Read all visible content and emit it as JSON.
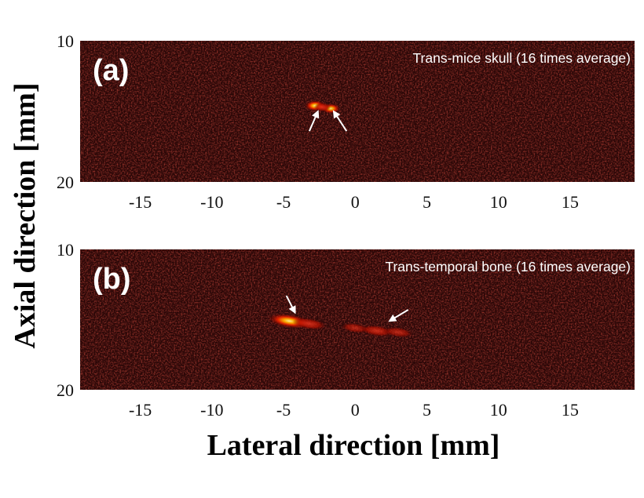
{
  "chart_data": {
    "type": "heatmap",
    "xlabel": "Lateral direction [mm]",
    "ylabel": "Axial direction [mm]",
    "colormap": "hot",
    "background_color": "#2a0707",
    "x_ticks": [
      -15,
      -10,
      -5,
      0,
      5,
      10,
      15
    ],
    "xlim": [
      -19.2,
      19.5
    ],
    "panels": [
      {
        "label": "(a)",
        "caption": "Trans-mice skull (16 times average)",
        "ylim": [
          10,
          20
        ],
        "y_ticks": [
          10,
          20
        ],
        "arrow_color": "#ffffff",
        "bright_regions": [
          {
            "x": -2.8,
            "y": 14.6,
            "intensity": 1.0
          },
          {
            "x": -1.7,
            "y": 14.8,
            "intensity": 0.85
          },
          {
            "x": -2.3,
            "y": 14.7,
            "intensity": 0.6
          }
        ],
        "arrows": [
          {
            "from": [
              -3.2,
              16.4
            ],
            "to": [
              -2.6,
              15.0
            ]
          },
          {
            "from": [
              -0.6,
              16.4
            ],
            "to": [
              -1.5,
              15.0
            ]
          }
        ]
      },
      {
        "label": "(b)",
        "caption": "Trans-temporal bone (16 times average)",
        "ylim": [
          10,
          20
        ],
        "y_ticks": [
          10,
          20
        ],
        "arrow_color": "#ffffff",
        "bright_regions": [
          {
            "x": -4.6,
            "y": 15.1,
            "intensity": 0.95
          },
          {
            "x": -3.2,
            "y": 15.3,
            "intensity": 0.55
          },
          {
            "x": 0.0,
            "y": 15.6,
            "intensity": 0.3
          },
          {
            "x": 1.5,
            "y": 15.8,
            "intensity": 0.5
          },
          {
            "x": 3.0,
            "y": 15.9,
            "intensity": 0.35
          }
        ],
        "arrows": [
          {
            "from": [
              -4.8,
              13.3
            ],
            "to": [
              -4.2,
              14.5
            ]
          },
          {
            "from": [
              3.7,
              14.3
            ],
            "to": [
              2.4,
              15.1
            ]
          }
        ]
      }
    ]
  }
}
